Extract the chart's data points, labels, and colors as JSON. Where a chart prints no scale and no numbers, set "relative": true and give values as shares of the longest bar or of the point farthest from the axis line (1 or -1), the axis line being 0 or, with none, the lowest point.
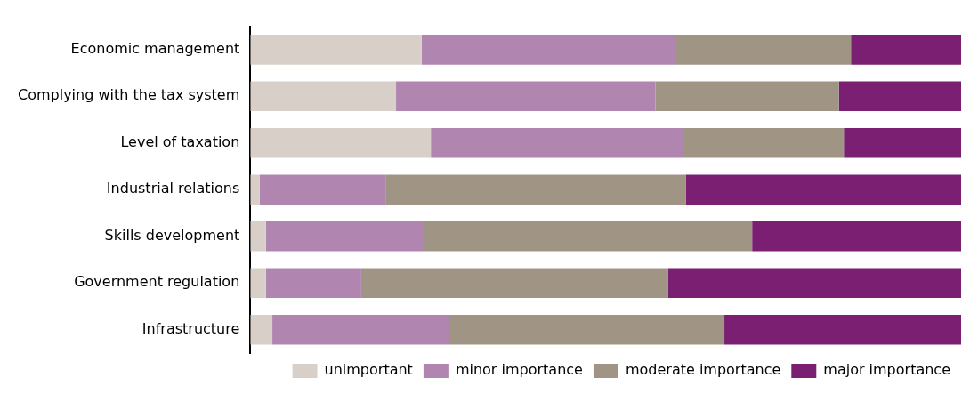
{
  "chart_data": {
    "type": "bar",
    "orientation": "horizontal",
    "stacked": true,
    "relative": true,
    "legend": "bottom",
    "categories": [
      "Economic management",
      "Complying with the tax system",
      "Level of taxation",
      "Industrial relations",
      "Skills development",
      "Government regulation",
      "Infrastructure"
    ],
    "series": [
      {
        "name": "unimportant",
        "color": "#d8d0c8",
        "values": [
          0.241,
          0.205,
          0.254,
          0.013,
          0.022,
          0.022,
          0.031
        ]
      },
      {
        "name": "minor importance",
        "color": "#b085b0",
        "values": [
          0.356,
          0.365,
          0.355,
          0.178,
          0.222,
          0.134,
          0.249
        ]
      },
      {
        "name": "moderate importance",
        "color": "#a09585",
        "values": [
          0.248,
          0.258,
          0.226,
          0.422,
          0.462,
          0.432,
          0.387
        ]
      },
      {
        "name": "major importance",
        "color": "#7a1f72",
        "values": [
          0.155,
          0.172,
          0.165,
          0.387,
          0.294,
          0.412,
          0.333
        ]
      }
    ]
  }
}
